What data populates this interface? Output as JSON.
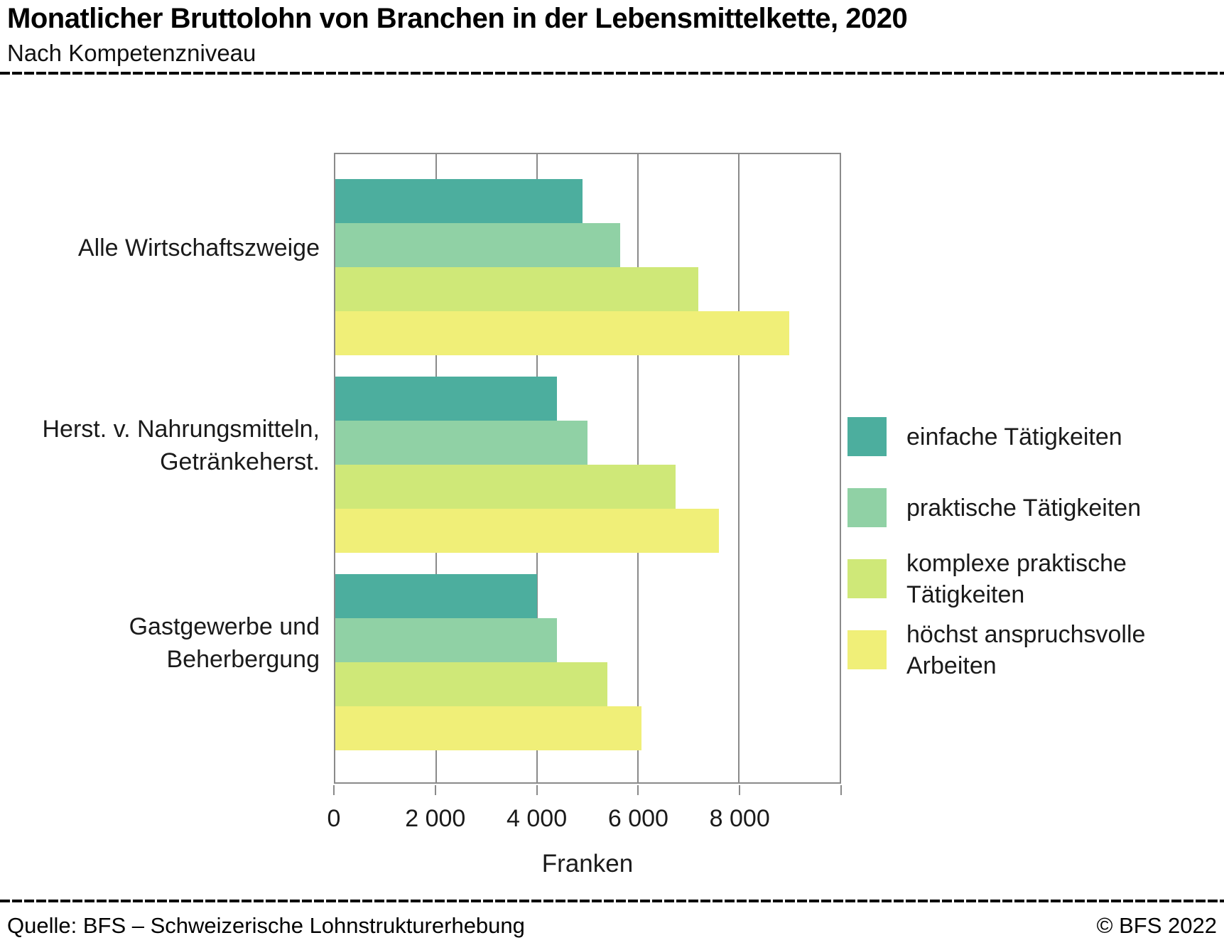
{
  "header": {
    "title": "Monatlicher Bruttolohn von Branchen in der Lebensmittelkette, 2020",
    "subtitle": "Nach Kompetenzniveau"
  },
  "chart_data": {
    "type": "bar",
    "orientation": "horizontal",
    "title": "Monatlicher Bruttolohn von Branchen in der Lebensmittelkette, 2020",
    "subtitle": "Nach Kompetenzniveau",
    "categories": [
      "Alle Wirtschaftszweige",
      "Herst. v. Nahrungsmitteln, Getränkeherst.",
      "Gastgewerbe und Beherbergung"
    ],
    "series": [
      {
        "name": "einfache Tätigkeiten",
        "color": "#4cae9e",
        "values": [
          4900,
          4400,
          4000
        ]
      },
      {
        "name": "praktische Tätigkeiten",
        "color": "#90d1a5",
        "values": [
          5650,
          5000,
          4400
        ]
      },
      {
        "name": "komplexe praktische Tätigkeiten",
        "color": "#cfe878",
        "values": [
          7200,
          6750,
          5400
        ]
      },
      {
        "name": "höchst anspruchsvolle Arbeiten",
        "color": "#f0ef78",
        "values": [
          9000,
          7600,
          6070
        ]
      }
    ],
    "xlabel": "Franken",
    "ylabel": "",
    "xlim": [
      0,
      10000
    ],
    "xticks": [
      0,
      2000,
      4000,
      6000,
      8000
    ],
    "xtick_labels": [
      "0",
      "2 000",
      "4 000",
      "6 000",
      "8 000"
    ],
    "grid": true,
    "legend_position": "right",
    "frame_color": "#8a8a8a"
  },
  "footer": {
    "source": "Quelle: BFS – Schweizerische Lohnstrukturerhebung",
    "copyright": "© BFS 2022"
  }
}
